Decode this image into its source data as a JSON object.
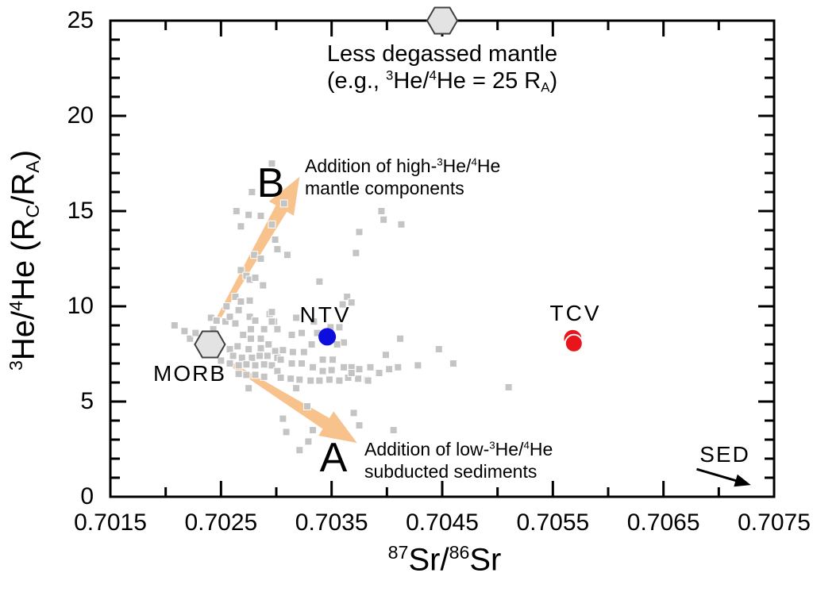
{
  "chart_data": {
    "type": "scatter",
    "title": "",
    "xlabel": "87Sr/86Sr",
    "xlabel_html": "<sup>87</sup>Sr/<sup>86</sup>Sr",
    "ylabel": "3He/4He (RC/RA)",
    "ylabel_html": "<sup>3</sup>He/<sup>4</sup>He (R<sub>C</sub>/R<sub>A</sub>)",
    "x_range": [
      0.7015,
      0.7075
    ],
    "y_range": [
      0,
      25
    ],
    "x_ticks": [
      0.7015,
      0.7025,
      0.7035,
      0.7045,
      0.7055,
      0.7065,
      0.7075
    ],
    "x_tick_labels": [
      "0.7015",
      "0.7025",
      "0.7035",
      "0.7045",
      "0.7055",
      "0.7065",
      "0.7075"
    ],
    "x_minor_step": 0.0005,
    "y_ticks": [
      0,
      5,
      10,
      15,
      20,
      25
    ],
    "y_tick_labels": [
      "0",
      "5",
      "10",
      "15",
      "20",
      "25"
    ],
    "y_minor_step": 1,
    "gridlines": false,
    "legend": false,
    "colors": {
      "axis": "#000000",
      "background_points": "#c4c4c4",
      "ntv": "#0d0ddd",
      "tcv": "#e8151c",
      "hexagon_fill": "#e3e3e3",
      "hexagon_stroke": "#404040",
      "mixing_arrow": "#f8c28d",
      "sed_arrow": "#000000"
    },
    "series": [
      {
        "name": "",
        "marker": "square",
        "color": "#c4c4c4",
        "points": [
          [
            0.70208,
            9.0
          ],
          [
            0.70217,
            8.7
          ],
          [
            0.70222,
            8.3
          ],
          [
            0.70227,
            8.6
          ],
          [
            0.70241,
            9.4
          ],
          [
            0.70246,
            9.25
          ],
          [
            0.70254,
            9.2
          ],
          [
            0.70243,
            8.8
          ],
          [
            0.70237,
            8.55
          ],
          [
            0.70258,
            9.45
          ],
          [
            0.70263,
            9.1
          ],
          [
            0.70276,
            9.45
          ],
          [
            0.70281,
            9.25
          ],
          [
            0.70289,
            8.8
          ],
          [
            0.70298,
            9.2
          ],
          [
            0.70301,
            8.8
          ],
          [
            0.70277,
            8.8
          ],
          [
            0.7027,
            8.5
          ],
          [
            0.70277,
            8.3
          ],
          [
            0.70286,
            8.3
          ],
          [
            0.70293,
            8.0
          ],
          [
            0.70286,
            7.8
          ],
          [
            0.70275,
            7.75
          ],
          [
            0.70265,
            7.9
          ],
          [
            0.70258,
            7.75
          ],
          [
            0.70261,
            7.4
          ],
          [
            0.70269,
            7.3
          ],
          [
            0.70278,
            7.3
          ],
          [
            0.70285,
            7.4
          ],
          [
            0.70292,
            7.4
          ],
          [
            0.70299,
            7.65
          ],
          [
            0.70301,
            7.3
          ],
          [
            0.7025,
            7.15
          ],
          [
            0.70258,
            7.0
          ],
          [
            0.70266,
            6.9
          ],
          [
            0.70273,
            6.95
          ],
          [
            0.70281,
            6.9
          ],
          [
            0.70289,
            6.95
          ],
          [
            0.70296,
            6.9
          ],
          [
            0.70301,
            6.6
          ],
          [
            0.70266,
            6.45
          ],
          [
            0.70273,
            6.4
          ],
          [
            0.70281,
            6.4
          ],
          [
            0.70289,
            6.3
          ],
          [
            0.70294,
            9.6
          ],
          [
            0.70296,
            9.2
          ],
          [
            0.70318,
            9.4
          ],
          [
            0.70334,
            9.2
          ],
          [
            0.70323,
            8.6
          ],
          [
            0.70337,
            8.6
          ],
          [
            0.70349,
            8.9
          ],
          [
            0.70357,
            8.9
          ],
          [
            0.70361,
            8.1
          ],
          [
            0.70355,
            8.0
          ],
          [
            0.70351,
            7.2
          ],
          [
            0.70342,
            7.2
          ],
          [
            0.70332,
            8.0
          ],
          [
            0.70314,
            8.5
          ],
          [
            0.70306,
            7.7
          ],
          [
            0.70315,
            7.6
          ],
          [
            0.70325,
            7.6
          ],
          [
            0.70304,
            7.2
          ],
          [
            0.70314,
            7.0
          ],
          [
            0.70323,
            7.0
          ],
          [
            0.70333,
            6.8
          ],
          [
            0.70342,
            6.6
          ],
          [
            0.7035,
            6.65
          ],
          [
            0.70361,
            6.8
          ],
          [
            0.70368,
            6.8
          ],
          [
            0.70375,
            6.7
          ],
          [
            0.70385,
            6.8
          ],
          [
            0.70393,
            6.5
          ],
          [
            0.70402,
            6.7
          ],
          [
            0.70365,
            6.25
          ],
          [
            0.70374,
            6.2
          ],
          [
            0.70382,
            6.15
          ],
          [
            0.70357,
            6.1
          ],
          [
            0.70348,
            6.15
          ],
          [
            0.70339,
            6.1
          ],
          [
            0.70331,
            6.1
          ],
          [
            0.70321,
            6.15
          ],
          [
            0.70313,
            6.2
          ],
          [
            0.70304,
            6.25
          ],
          [
            0.70275,
            5.7
          ],
          [
            0.70318,
            5.7
          ],
          [
            0.70296,
            17.5
          ],
          [
            0.70278,
            16.0
          ],
          [
            0.70307,
            15.4
          ],
          [
            0.70264,
            15.0
          ],
          [
            0.70275,
            14.8
          ],
          [
            0.70286,
            14.75
          ],
          [
            0.70268,
            14.2
          ],
          [
            0.70296,
            14.3
          ],
          [
            0.70299,
            13.5
          ],
          [
            0.70301,
            13.0
          ],
          [
            0.7031,
            12.7
          ],
          [
            0.7028,
            12.7
          ],
          [
            0.70286,
            12.5
          ],
          [
            0.70268,
            11.9
          ],
          [
            0.70273,
            11.6
          ],
          [
            0.70276,
            11.4
          ],
          [
            0.70281,
            11.5
          ],
          [
            0.70288,
            11.1
          ],
          [
            0.70339,
            11.3
          ],
          [
            0.70263,
            10.5
          ],
          [
            0.70268,
            10.25
          ],
          [
            0.70276,
            10.3
          ],
          [
            0.70255,
            10.0
          ],
          [
            0.70266,
            9.8
          ],
          [
            0.70296,
            9.7
          ],
          [
            0.70364,
            10.5
          ],
          [
            0.70368,
            10.2
          ],
          [
            0.7036,
            10.1
          ],
          [
            0.70372,
            12.8
          ],
          [
            0.70375,
            13.9
          ],
          [
            0.70395,
            15.0
          ],
          [
            0.70397,
            14.55
          ],
          [
            0.70413,
            14.3
          ],
          [
            0.70412,
            8.3
          ],
          [
            0.70447,
            7.75
          ],
          [
            0.70399,
            7.45
          ],
          [
            0.7041,
            6.8
          ],
          [
            0.70428,
            6.9
          ],
          [
            0.7046,
            7.0
          ],
          [
            0.70368,
            6.5
          ],
          [
            0.70383,
            6.1
          ],
          [
            0.7051,
            5.75
          ],
          [
            0.70328,
            4.75
          ],
          [
            0.70306,
            4.1
          ],
          [
            0.70309,
            3.4
          ],
          [
            0.70333,
            3.5
          ],
          [
            0.7037,
            4.4
          ],
          [
            0.70375,
            3.75
          ],
          [
            0.70329,
            2.9
          ],
          [
            0.70321,
            2.45
          ],
          [
            0.70406,
            3.5
          ]
        ]
      },
      {
        "name": "NTV",
        "marker": "circle",
        "color": "#0d0ddd",
        "points": [
          [
            0.70346,
            8.4
          ]
        ]
      },
      {
        "name": "TCV",
        "marker": "circle",
        "color": "#e8151c",
        "points": [
          [
            0.70568,
            8.3
          ],
          [
            0.70569,
            8.05,
            "front"
          ]
        ]
      }
    ],
    "reference_markers": [
      {
        "label": "MORB",
        "shape": "hexagon",
        "x": 0.7024,
        "y": 8.0
      },
      {
        "label": "Less degassed mantle",
        "sublabel": "(e.g., 3He/4He = 25 RA)",
        "sublabel_html": "(e.g., <sup>3</sup>He/<sup>4</sup>He = 25 R<sub>A</sub>)",
        "shape": "hexagon",
        "x": 0.7045,
        "y": 25
      }
    ],
    "arrows": [
      {
        "label": "B",
        "color": "#f8c28d",
        "from": [
          0.70247,
          9.3
        ],
        "to": [
          0.70321,
          16.8
        ],
        "description": "Addition of high-3He/4He mantle components",
        "description_html": "Addition of high-<sup>3</sup>He/<sup>4</sup>He<br>mantle components"
      },
      {
        "label": "A",
        "color": "#f8c28d",
        "from": [
          0.70258,
          7.0
        ],
        "to": [
          0.70373,
          2.83
        ],
        "description": "Addition of low-3He/4He subducted sediments",
        "description_html": "Addition of low-<sup>3</sup>He/<sup>4</sup>He<br>subducted sediments"
      },
      {
        "label": "SED",
        "color": "#000000",
        "from": [
          0.7068,
          1.45
        ],
        "to": [
          0.70729,
          0.62
        ],
        "description": "",
        "description_html": ""
      }
    ]
  }
}
